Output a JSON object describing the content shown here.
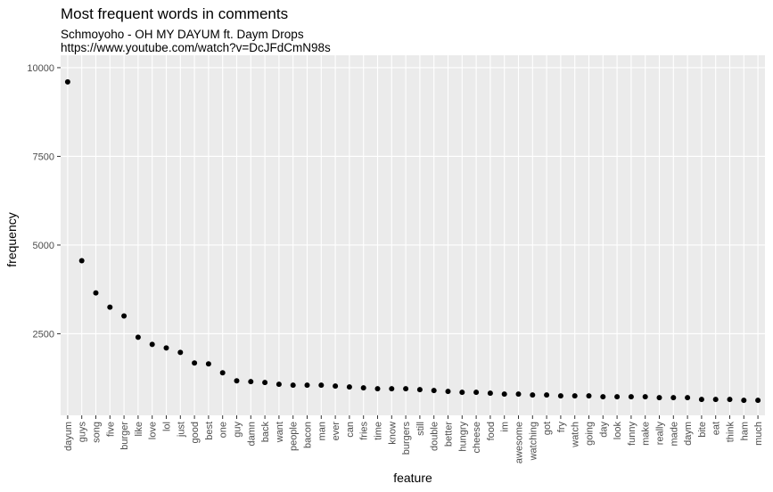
{
  "chart_data": {
    "type": "scatter",
    "title": "Most frequent words in comments",
    "subtitle": [
      "Schmoyoho - OH MY DAYUM ft. Daym Drops",
      "https://www.youtube.com/watch?v=DcJFdCmN98s"
    ],
    "x_label": "feature",
    "y_label": "frequency",
    "categories": [
      "dayum",
      "guys",
      "song",
      "five",
      "burger",
      "like",
      "love",
      "lol",
      "just",
      "good",
      "best",
      "one",
      "guy",
      "damn",
      "back",
      "want",
      "people",
      "bacon",
      "man",
      "ever",
      "can",
      "fries",
      "time",
      "know",
      "burgers",
      "still",
      "double",
      "better",
      "hungry",
      "cheese",
      "food",
      "im",
      "awesome",
      "watching",
      "got",
      "fry",
      "watch",
      "going",
      "day",
      "look",
      "funny",
      "make",
      "really",
      "made",
      "daym",
      "bite",
      "eat",
      "think",
      "ham",
      "much"
    ],
    "values": [
      9600,
      4560,
      3650,
      3250,
      3000,
      2400,
      2200,
      2100,
      1975,
      1675,
      1650,
      1400,
      1175,
      1150,
      1125,
      1075,
      1050,
      1050,
      1050,
      1025,
      1000,
      975,
      950,
      950,
      950,
      925,
      900,
      875,
      850,
      850,
      825,
      800,
      800,
      775,
      775,
      750,
      750,
      750,
      725,
      725,
      725,
      725,
      700,
      700,
      700,
      650,
      650,
      650,
      625,
      625
    ],
    "color": "#000000",
    "ylim": [
      200,
      10350
    ],
    "yticks": [
      2500,
      5000,
      7500,
      10000
    ],
    "grid": true
  }
}
